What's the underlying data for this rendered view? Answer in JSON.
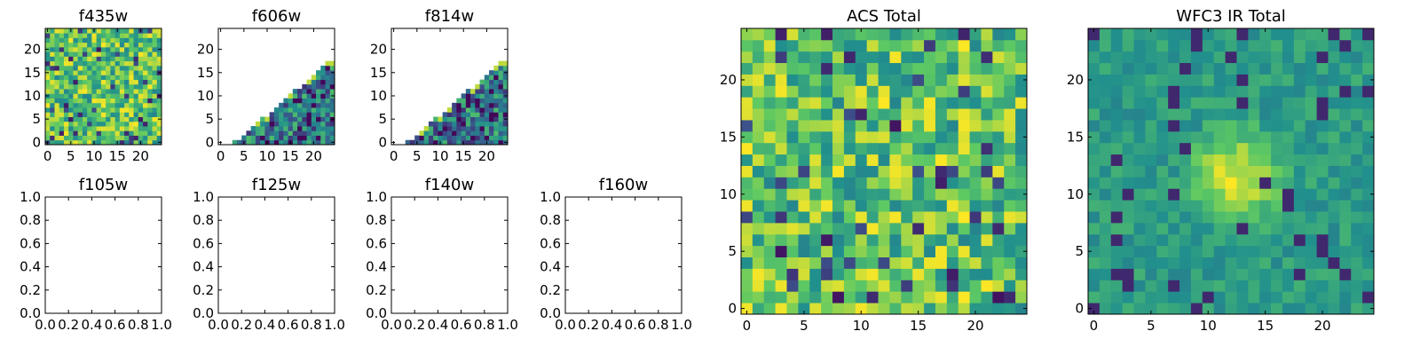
{
  "chart_data": [
    {
      "type": "heatmap",
      "title": "f435w",
      "fill": "full",
      "seed": 11,
      "x_ticks": [
        "0",
        "5",
        "10",
        "15",
        "20"
      ],
      "y_ticks": [
        "0",
        "5",
        "10",
        "15",
        "20"
      ],
      "xlim": [
        -0.5,
        24.5
      ],
      "ylim": [
        -0.5,
        24.5
      ]
    },
    {
      "type": "heatmap",
      "title": "f606w",
      "fill": "lower-right-triangle",
      "seed": 22,
      "x_ticks": [
        "0",
        "5",
        "10",
        "15",
        "20"
      ],
      "y_ticks": [
        "0",
        "5",
        "10",
        "15",
        "20"
      ],
      "xlim": [
        -0.5,
        24.5
      ],
      "ylim": [
        -0.5,
        24.5
      ]
    },
    {
      "type": "heatmap",
      "title": "f814w",
      "fill": "lower-right-triangle",
      "seed": 33,
      "x_ticks": [
        "0",
        "5",
        "10",
        "15",
        "20"
      ],
      "y_ticks": [
        "0",
        "5",
        "10",
        "15",
        "20"
      ],
      "xlim": [
        -0.5,
        24.5
      ],
      "ylim": [
        -0.5,
        24.5
      ]
    },
    {
      "type": "heatmap",
      "title": "f105w",
      "fill": "empty",
      "x_ticks": [
        "0.0",
        "0.2",
        "0.4",
        "0.6",
        "0.8",
        "1.0"
      ],
      "y_ticks": [
        "0.0",
        "0.2",
        "0.4",
        "0.6",
        "0.8",
        "1.0"
      ],
      "xlim": [
        0,
        1
      ],
      "ylim": [
        0,
        1
      ]
    },
    {
      "type": "heatmap",
      "title": "f125w",
      "fill": "empty",
      "x_ticks": [
        "0.0",
        "0.2",
        "0.4",
        "0.6",
        "0.8",
        "1.0"
      ],
      "y_ticks": [
        "0.0",
        "0.2",
        "0.4",
        "0.6",
        "0.8",
        "1.0"
      ],
      "xlim": [
        0,
        1
      ],
      "ylim": [
        0,
        1
      ]
    },
    {
      "type": "heatmap",
      "title": "f140w",
      "fill": "empty",
      "x_ticks": [
        "0.0",
        "0.2",
        "0.4",
        "0.6",
        "0.8",
        "1.0"
      ],
      "y_ticks": [
        "0.0",
        "0.2",
        "0.4",
        "0.6",
        "0.8",
        "1.0"
      ],
      "xlim": [
        0,
        1
      ],
      "ylim": [
        0,
        1
      ]
    },
    {
      "type": "heatmap",
      "title": "f160w",
      "fill": "empty",
      "x_ticks": [
        "0.0",
        "0.2",
        "0.4",
        "0.6",
        "0.8",
        "1.0"
      ],
      "y_ticks": [
        "0.0",
        "0.2",
        "0.4",
        "0.6",
        "0.8",
        "1.0"
      ],
      "xlim": [
        0,
        1
      ],
      "ylim": [
        0,
        1
      ]
    },
    {
      "type": "heatmap",
      "title": "ACS Total",
      "fill": "full",
      "seed": 44,
      "x_ticks": [
        "0",
        "5",
        "10",
        "15",
        "20"
      ],
      "y_ticks": [
        "0",
        "5",
        "10",
        "15",
        "20"
      ],
      "xlim": [
        -0.5,
        24.5
      ],
      "ylim": [
        -0.5,
        24.5
      ]
    },
    {
      "type": "heatmap",
      "title": "WFC3 IR Total",
      "fill": "full-smooth-blob",
      "seed": 55,
      "blob_center": [
        12.5,
        11.5
      ],
      "x_ticks": [
        "0",
        "5",
        "10",
        "15",
        "20"
      ],
      "y_ticks": [
        "0",
        "5",
        "10",
        "15",
        "20"
      ],
      "xlim": [
        -0.5,
        24.5
      ],
      "ylim": [
        -0.5,
        24.5
      ]
    }
  ],
  "colormap": {
    "name": "viridis",
    "stops": [
      "#440154",
      "#3b528b",
      "#21908d",
      "#5dc963",
      "#fde725"
    ]
  },
  "grid_size": 25
}
